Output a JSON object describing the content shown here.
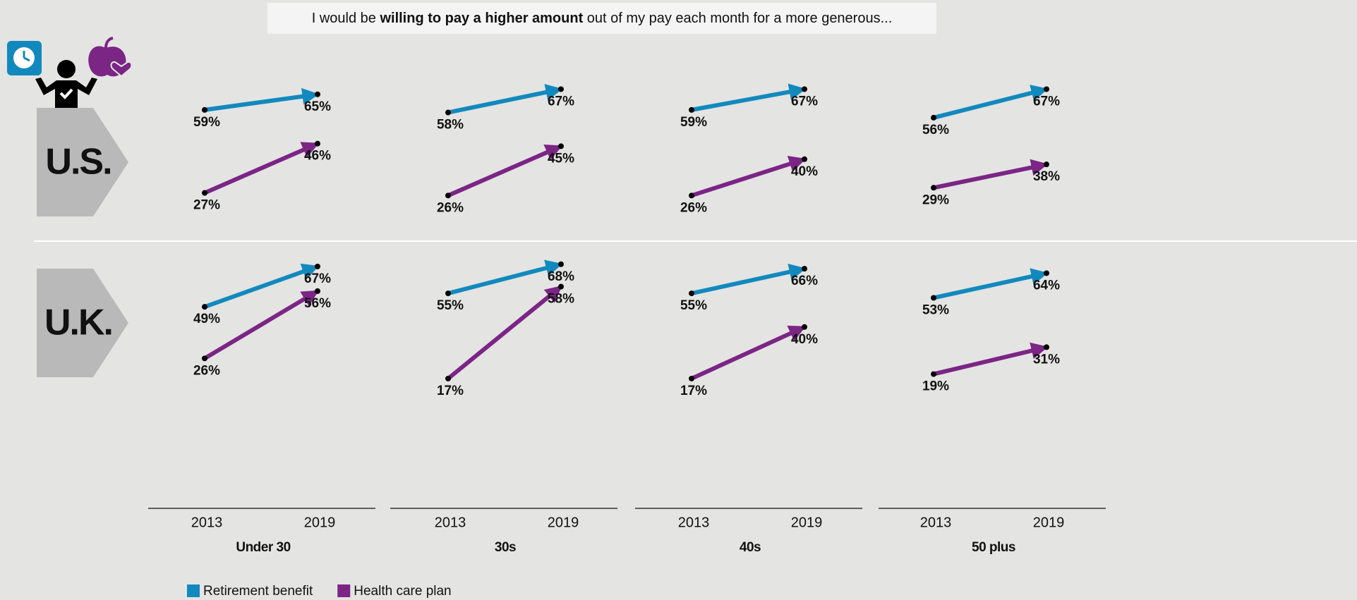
{
  "chart_data": {
    "type": "slope",
    "title": [
      "I would be ",
      "willing to pay a higher amount",
      " out of my pay each month for a more generous..."
    ],
    "rows": [
      "U.S.",
      "U.K."
    ],
    "columns": [
      "Under 30",
      "30s",
      "40s",
      "50 plus"
    ],
    "x": [
      2013,
      2019
    ],
    "ylim": [
      0,
      100
    ],
    "series": [
      {
        "name": "Retirement benefit",
        "color": "#1289bd",
        "values": [
          [
            [
              59,
              65
            ],
            [
              58,
              67
            ],
            [
              59,
              67
            ],
            [
              56,
              67
            ]
          ],
          [
            [
              49,
              67
            ],
            [
              55,
              68
            ],
            [
              55,
              66
            ],
            [
              53,
              64
            ]
          ]
        ],
        "value_labels": [
          [
            [
              "59%",
              "65%"
            ],
            [
              "58%",
              "67%"
            ],
            [
              "59%",
              "67%"
            ],
            [
              "56%",
              "67%"
            ]
          ],
          [
            [
              "49%",
              "67%"
            ],
            [
              "55%",
              "68%"
            ],
            [
              "55%",
              "66%"
            ],
            [
              "53%",
              "64%"
            ]
          ]
        ]
      },
      {
        "name": "Health care plan",
        "color": "#7b2585",
        "values": [
          [
            [
              27,
              46
            ],
            [
              26,
              45
            ],
            [
              26,
              40
            ],
            [
              29,
              38
            ]
          ],
          [
            [
              26,
              56
            ],
            [
              17,
              58
            ],
            [
              17,
              40
            ],
            [
              19,
              31
            ]
          ]
        ],
        "value_labels": [
          [
            [
              "27%",
              "46%"
            ],
            [
              "26%",
              "45%"
            ],
            [
              "26%",
              "40%"
            ],
            [
              "29%",
              "38%"
            ]
          ],
          [
            [
              "26%",
              "56%"
            ],
            [
              "17%",
              "58%"
            ],
            [
              "17%",
              "40%"
            ],
            [
              "19%",
              "31%"
            ]
          ]
        ]
      }
    ]
  }
}
